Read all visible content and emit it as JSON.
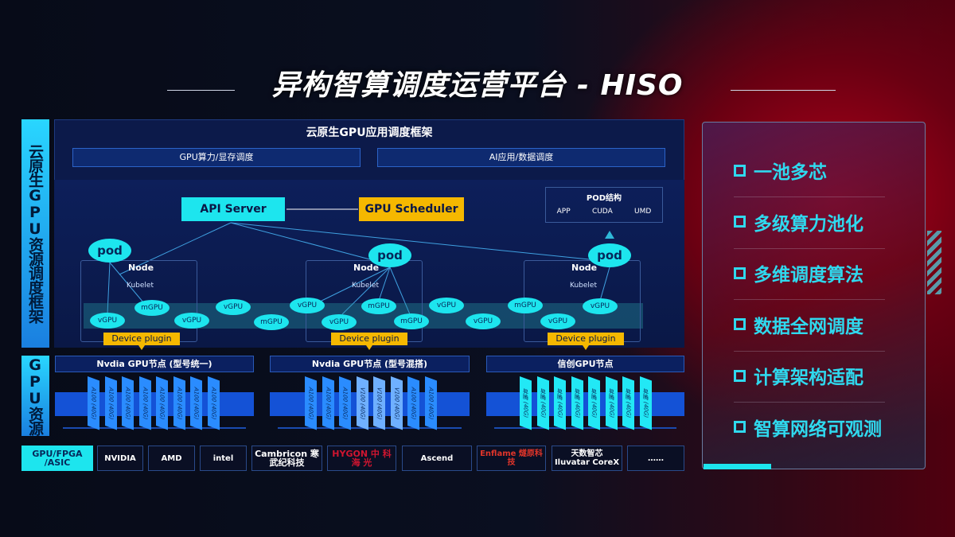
{
  "title": "异构智算调度运营平台 - HISO",
  "left_labels": {
    "framework": "云原生GPU资源调度框架",
    "resources": "GPU资源"
  },
  "framework": {
    "title": "云原生GPU应用调度框架",
    "top_boxes": [
      "GPU算力/显存调度",
      "AI应用/数据调度"
    ],
    "api_server": "API Server",
    "gpu_scheduler": "GPU Scheduler",
    "pod_structure": {
      "title": "POD结构",
      "items": [
        "APP",
        "CUDA",
        "UMD"
      ]
    },
    "pod_label": "pod",
    "node_label": "Node",
    "kubelet_label": "Kubelet",
    "device_plugin": "Device plugin",
    "virtual_gpus": [
      "vGPU",
      "mGPU",
      "vGPU",
      "vGPU",
      "mGPU",
      "vGPU",
      "vGPU",
      "mGPU",
      "mGPU",
      "vGPU",
      "vGPU",
      "mGPU",
      "vGPU",
      "vGPU"
    ]
  },
  "gpu_nodes": [
    {
      "title": "Nvdia GPU节点 (型号统一)",
      "chips": [
        "A100 (40G)",
        "A100 (40G)",
        "A100 (40G)",
        "A100 (40G)",
        "A100 (40G)",
        "A100 (40G)",
        "A100 (40G)",
        "A100 (40G)"
      ]
    },
    {
      "title": "Nvdia GPU节点 (型号混搭)",
      "chips": [
        "A100 (40G)",
        "A100 (40G)",
        "A100 (40G)",
        "V100 (40G)",
        "V100 (40G)",
        "V100 (40G)",
        "A100 (40G)",
        "A100 (40G)"
      ]
    },
    {
      "title": "信创GPU节点",
      "chips": [
        "昇腾 (40G)",
        "昇腾 (40G)",
        "昇腾 (40G)",
        "昇腾 (40G)",
        "昇腾 (40G)",
        "昇腾 (40G)",
        "昇腾 (40G)",
        "昇腾 (40G)"
      ]
    }
  ],
  "vendors": {
    "label": "GPU/FPGA /ASIC",
    "items": [
      "NVIDIA",
      "AMD",
      "intel",
      "Cambricon 寒武纪科技",
      "HYGON 中 科 海 光",
      "Ascend",
      "Enflame 燧原科技",
      "天数智芯 Iluvatar CoreX",
      "……"
    ]
  },
  "features": [
    "一池多芯",
    "多级算力池化",
    "多维调度算法",
    "数据全网调度",
    "计算架构适配",
    "智算网络可观测"
  ],
  "colors": {
    "cyan": "#1de5ee",
    "orange": "#f5b800",
    "blue": "#1452d6",
    "red": "#b0001a"
  }
}
